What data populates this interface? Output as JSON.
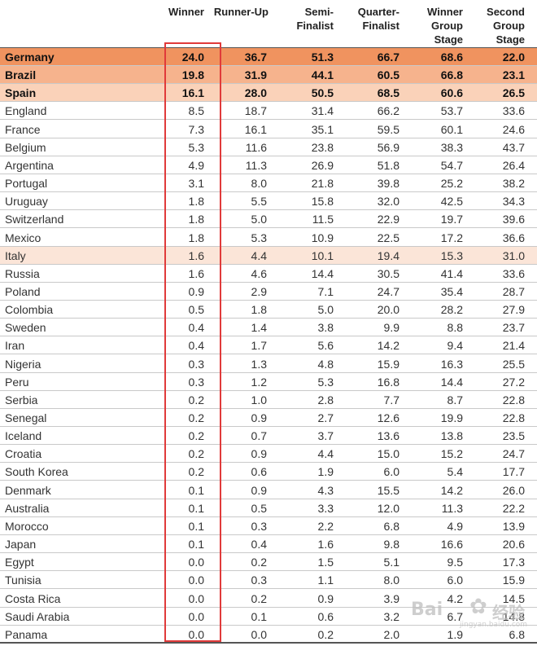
{
  "headers": [
    "Winner",
    "Runner-Up",
    "Semi-\nFinalist",
    "Quarter-\nFinalist",
    "Winner\nGroup\nStage",
    "Second\nGroup\nStage"
  ],
  "rows": [
    {
      "team": "Germany",
      "values": [
        "24.0",
        "36.7",
        "51.3",
        "66.7",
        "68.6",
        "22.0"
      ]
    },
    {
      "team": "Brazil",
      "values": [
        "19.8",
        "31.9",
        "44.1",
        "60.5",
        "66.8",
        "23.1"
      ]
    },
    {
      "team": "Spain",
      "values": [
        "16.1",
        "28.0",
        "50.5",
        "68.5",
        "60.6",
        "26.5"
      ]
    },
    {
      "team": "England",
      "values": [
        "8.5",
        "18.7",
        "31.4",
        "66.2",
        "53.7",
        "33.6"
      ]
    },
    {
      "team": "France",
      "values": [
        "7.3",
        "16.1",
        "35.1",
        "59.5",
        "60.1",
        "24.6"
      ]
    },
    {
      "team": "Belgium",
      "values": [
        "5.3",
        "11.6",
        "23.8",
        "56.9",
        "38.3",
        "43.7"
      ]
    },
    {
      "team": "Argentina",
      "values": [
        "4.9",
        "11.3",
        "26.9",
        "51.8",
        "54.7",
        "26.4"
      ]
    },
    {
      "team": "Portugal",
      "values": [
        "3.1",
        "8.0",
        "21.8",
        "39.8",
        "25.2",
        "38.2"
      ]
    },
    {
      "team": "Uruguay",
      "values": [
        "1.8",
        "5.5",
        "15.8",
        "32.0",
        "42.5",
        "34.3"
      ]
    },
    {
      "team": "Switzerland",
      "values": [
        "1.8",
        "5.0",
        "11.5",
        "22.9",
        "19.7",
        "39.6"
      ]
    },
    {
      "team": "Mexico",
      "values": [
        "1.8",
        "5.3",
        "10.9",
        "22.5",
        "17.2",
        "36.6"
      ]
    },
    {
      "team": "Italy",
      "values": [
        "1.6",
        "4.4",
        "10.1",
        "19.4",
        "15.3",
        "31.0"
      ]
    },
    {
      "team": "Russia",
      "values": [
        "1.6",
        "4.6",
        "14.4",
        "30.5",
        "41.4",
        "33.6"
      ]
    },
    {
      "team": "Poland",
      "values": [
        "0.9",
        "2.9",
        "7.1",
        "24.7",
        "35.4",
        "28.7"
      ]
    },
    {
      "team": "Colombia",
      "values": [
        "0.5",
        "1.8",
        "5.0",
        "20.0",
        "28.2",
        "27.9"
      ]
    },
    {
      "team": "Sweden",
      "values": [
        "0.4",
        "1.4",
        "3.8",
        "9.9",
        "8.8",
        "23.7"
      ]
    },
    {
      "team": "Iran",
      "values": [
        "0.4",
        "1.7",
        "5.6",
        "14.2",
        "9.4",
        "21.4"
      ]
    },
    {
      "team": "Nigeria",
      "values": [
        "0.3",
        "1.3",
        "4.8",
        "15.9",
        "16.3",
        "25.5"
      ]
    },
    {
      "team": "Peru",
      "values": [
        "0.3",
        "1.2",
        "5.3",
        "16.8",
        "14.4",
        "27.2"
      ]
    },
    {
      "team": "Serbia",
      "values": [
        "0.2",
        "1.0",
        "2.8",
        "7.7",
        "8.7",
        "22.8"
      ]
    },
    {
      "team": "Senegal",
      "values": [
        "0.2",
        "0.9",
        "2.7",
        "12.6",
        "19.9",
        "22.8"
      ]
    },
    {
      "team": "Iceland",
      "values": [
        "0.2",
        "0.7",
        "3.7",
        "13.6",
        "13.8",
        "23.5"
      ]
    },
    {
      "team": "Croatia",
      "values": [
        "0.2",
        "0.9",
        "4.4",
        "15.0",
        "15.2",
        "24.7"
      ]
    },
    {
      "team": "South Korea",
      "values": [
        "0.2",
        "0.6",
        "1.9",
        "6.0",
        "5.4",
        "17.7"
      ]
    },
    {
      "team": "Denmark",
      "values": [
        "0.1",
        "0.9",
        "4.3",
        "15.5",
        "14.2",
        "26.0"
      ]
    },
    {
      "team": "Australia",
      "values": [
        "0.1",
        "0.5",
        "3.3",
        "12.0",
        "11.3",
        "22.2"
      ]
    },
    {
      "team": "Morocco",
      "values": [
        "0.1",
        "0.3",
        "2.2",
        "6.8",
        "4.9",
        "13.9"
      ]
    },
    {
      "team": "Japan",
      "values": [
        "0.1",
        "0.4",
        "1.6",
        "9.8",
        "16.6",
        "20.6"
      ]
    },
    {
      "team": "Egypt",
      "values": [
        "0.0",
        "0.2",
        "1.5",
        "5.1",
        "9.5",
        "17.3"
      ]
    },
    {
      "team": "Tunisia",
      "values": [
        "0.0",
        "0.3",
        "1.1",
        "8.0",
        "6.0",
        "15.9"
      ]
    },
    {
      "team": "Costa Rica",
      "values": [
        "0.0",
        "0.2",
        "0.9",
        "3.9",
        "4.2",
        "14.5"
      ]
    },
    {
      "team": "Saudi Arabia",
      "values": [
        "0.0",
        "0.1",
        "0.6",
        "3.2",
        "6.7",
        "14.8"
      ]
    },
    {
      "team": "Panama",
      "values": [
        "0.0",
        "0.0",
        "0.2",
        "2.0",
        "1.9",
        "6.8"
      ]
    }
  ],
  "watermark": {
    "text": "Bai",
    "text2": "经验",
    "url": "jingyan.baidu.com"
  }
}
